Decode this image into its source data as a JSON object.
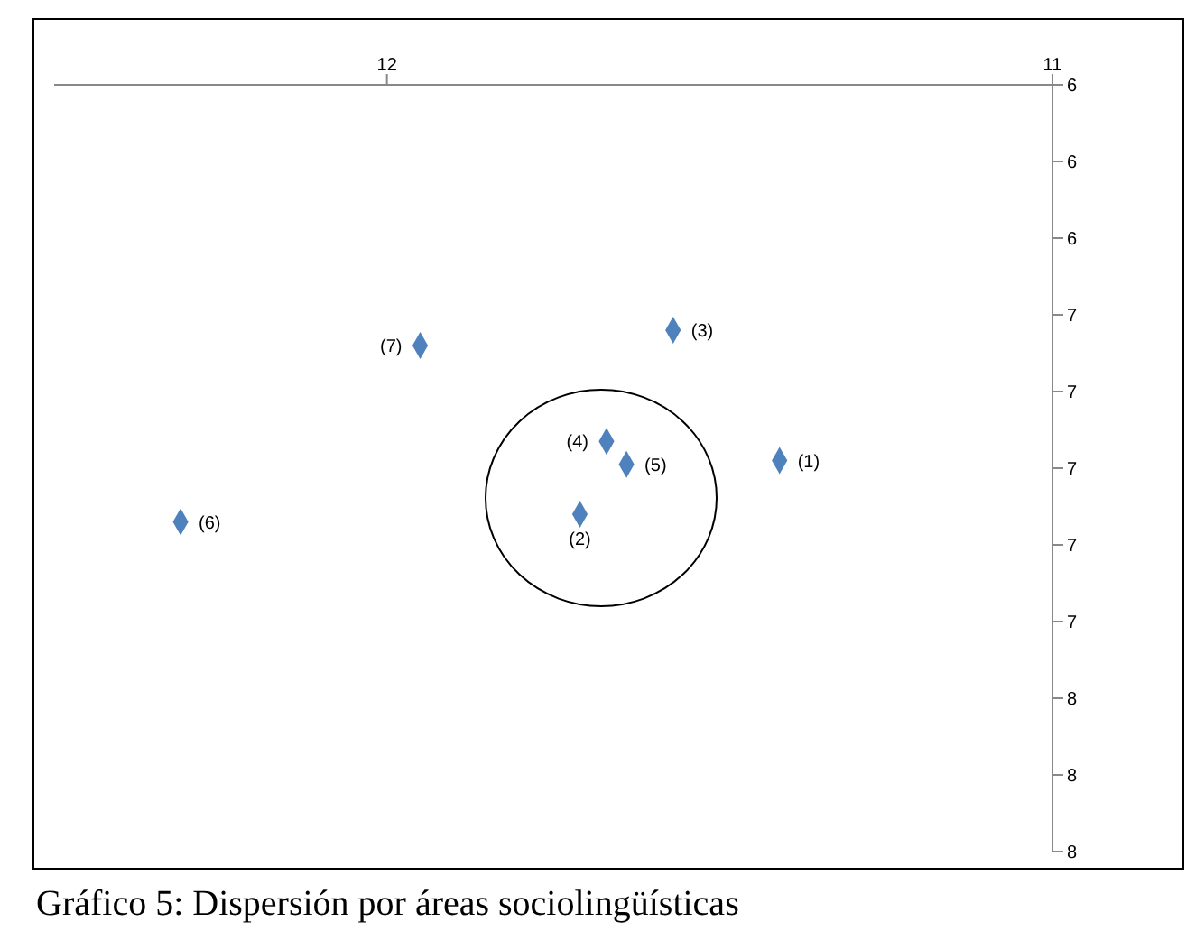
{
  "chart_data": {
    "type": "scatter",
    "title": "Gráfico 5: Dispersión por áreas sociolingüísticas",
    "x": [
      11.41,
      11.71,
      11.57,
      11.67,
      11.64,
      12.31,
      11.95
    ],
    "series": [
      {
        "color": "#4f81bd",
        "values": [
          6.98,
          7.12,
          6.64,
          6.93,
          6.99,
          7.14,
          6.68
        ]
      }
    ],
    "xlim": [
      12.5,
      11
    ],
    "xticks": [
      12,
      11
    ],
    "ylim": [
      8,
      6
    ],
    "yticks": [
      {
        "value": 6,
        "label": "6"
      },
      {
        "value": 6.2,
        "label": "6"
      },
      {
        "value": 6.4,
        "label": "6"
      },
      {
        "value": 6.6,
        "label": "7"
      },
      {
        "value": 6.8,
        "label": "7"
      },
      {
        "value": 7,
        "label": "7"
      },
      {
        "value": 7.2,
        "label": "7"
      },
      {
        "value": 7.4,
        "label": "7"
      },
      {
        "value": 7.6,
        "label": "8"
      },
      {
        "value": 7.8,
        "label": "8"
      },
      {
        "value": 8,
        "label": "8"
      }
    ],
    "annotations": [
      {
        "text": "(1)",
        "x": 11.41,
        "y": 6.98
      },
      {
        "text": "(2)",
        "x": 11.71,
        "y": 7.12
      },
      {
        "text": "(3)",
        "x": 11.57,
        "y": 6.64
      },
      {
        "text": "(4)",
        "x": 11.67,
        "y": 6.93
      },
      {
        "text": "(5)",
        "x": 11.64,
        "y": 6.99
      },
      {
        "text": "(6)",
        "x": 12.31,
        "y": 7.14
      },
      {
        "text": "(7)",
        "x": 11.95,
        "y": 6.68
      }
    ],
    "marker": "diamond",
    "grid": false,
    "legend": false
  }
}
